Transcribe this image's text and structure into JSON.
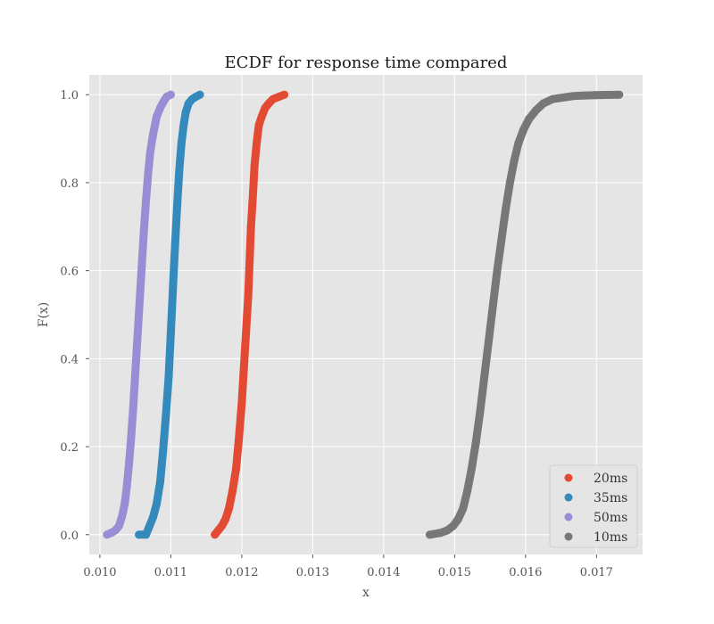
{
  "chart_data": {
    "type": "scatter",
    "title": "ECDF for response time compared",
    "xlabel": "x",
    "ylabel": "F(x)",
    "xlim": [
      0.00985,
      0.01765
    ],
    "ylim": [
      -0.045,
      1.045
    ],
    "x_ticks": [
      {
        "value": 0.01,
        "label": "0.010"
      },
      {
        "value": 0.011,
        "label": "0.011"
      },
      {
        "value": 0.012,
        "label": "0.012"
      },
      {
        "value": 0.013,
        "label": "0.013"
      },
      {
        "value": 0.014,
        "label": "0.014"
      },
      {
        "value": 0.015,
        "label": "0.015"
      },
      {
        "value": 0.016,
        "label": "0.016"
      },
      {
        "value": 0.017,
        "label": "0.017"
      }
    ],
    "y_ticks": [
      {
        "value": 0.0,
        "label": "0.0"
      },
      {
        "value": 0.2,
        "label": "0.2"
      },
      {
        "value": 0.4,
        "label": "0.4"
      },
      {
        "value": 0.6,
        "label": "0.6"
      },
      {
        "value": 0.8,
        "label": "0.8"
      },
      {
        "value": 1.0,
        "label": "1.0"
      }
    ],
    "grid": true,
    "legend_position": "bottom-right",
    "series": [
      {
        "name": "20ms",
        "color": "#E24A33",
        "x": [
          0.01162,
          0.01167,
          0.01172,
          0.01177,
          0.01182,
          0.01187,
          0.01192,
          0.01196,
          0.012,
          0.01203,
          0.01206,
          0.01209,
          0.01211,
          0.01213,
          0.01216,
          0.01218,
          0.01221,
          0.01224,
          0.01228,
          0.01233,
          0.01238,
          0.01244,
          0.01252,
          0.0126
        ],
        "y": [
          0.0,
          0.01,
          0.02,
          0.035,
          0.06,
          0.1,
          0.15,
          0.22,
          0.3,
          0.38,
          0.46,
          0.54,
          0.62,
          0.7,
          0.78,
          0.84,
          0.89,
          0.93,
          0.95,
          0.97,
          0.98,
          0.99,
          0.995,
          1.0
        ]
      },
      {
        "name": "35ms",
        "color": "#348ABD",
        "x": [
          0.01055,
          0.01065,
          0.0107,
          0.01075,
          0.0108,
          0.01085,
          0.01089,
          0.01093,
          0.01097,
          0.011,
          0.01103,
          0.01106,
          0.01109,
          0.01112,
          0.01115,
          0.01118,
          0.01121,
          0.01125,
          0.0113,
          0.01135,
          0.01141
        ],
        "y": [
          0.0,
          0.0,
          0.02,
          0.04,
          0.07,
          0.12,
          0.19,
          0.27,
          0.36,
          0.46,
          0.56,
          0.66,
          0.75,
          0.83,
          0.89,
          0.93,
          0.96,
          0.98,
          0.99,
          0.995,
          1.0
        ]
      },
      {
        "name": "50ms",
        "color": "#988ED5",
        "x": [
          0.0101,
          0.01017,
          0.01022,
          0.01027,
          0.01031,
          0.01035,
          0.01038,
          0.01041,
          0.01044,
          0.01047,
          0.0105,
          0.01053,
          0.01056,
          0.01059,
          0.01062,
          0.01065,
          0.01068,
          0.01071,
          0.01075,
          0.0108,
          0.01085,
          0.0109,
          0.01094,
          0.011
        ],
        "y": [
          0.0,
          0.005,
          0.01,
          0.02,
          0.04,
          0.07,
          0.11,
          0.16,
          0.22,
          0.29,
          0.37,
          0.45,
          0.53,
          0.61,
          0.69,
          0.76,
          0.82,
          0.87,
          0.91,
          0.95,
          0.97,
          0.985,
          0.995,
          1.0
        ]
      },
      {
        "name": "10ms",
        "color": "#777777",
        "x": [
          0.01465,
          0.0148,
          0.0149,
          0.01498,
          0.01505,
          0.01512,
          0.01518,
          0.01524,
          0.0153,
          0.01536,
          0.01542,
          0.01548,
          0.01554,
          0.0156,
          0.01566,
          0.01572,
          0.01578,
          0.01584,
          0.0159,
          0.01597,
          0.01605,
          0.01615,
          0.01625,
          0.01638,
          0.01655,
          0.01668,
          0.0168,
          0.01698,
          0.01732
        ],
        "y": [
          0.0,
          0.004,
          0.01,
          0.02,
          0.035,
          0.06,
          0.1,
          0.15,
          0.21,
          0.28,
          0.36,
          0.44,
          0.52,
          0.6,
          0.67,
          0.74,
          0.8,
          0.85,
          0.89,
          0.92,
          0.945,
          0.965,
          0.98,
          0.99,
          0.994,
          0.997,
          0.998,
          0.999,
          1.0
        ]
      }
    ]
  }
}
